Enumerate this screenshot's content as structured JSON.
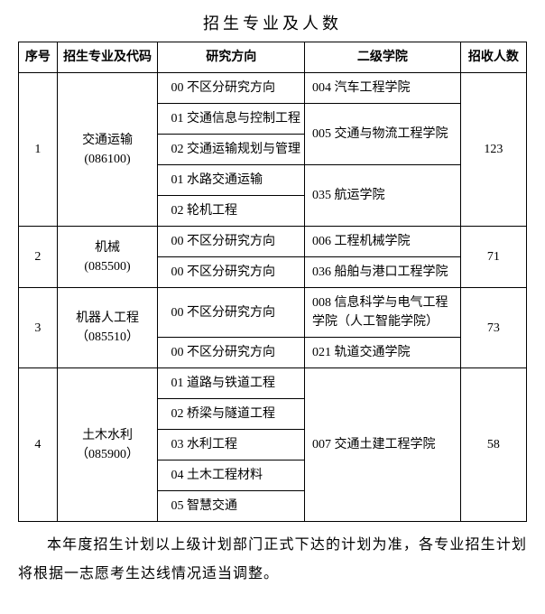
{
  "title": "招生专业及人数",
  "headers": {
    "seq": "序号",
    "major": "招生专业及代码",
    "direction": "研究方向",
    "college": "二级学院",
    "quota": "招收人数"
  },
  "rows": [
    {
      "seq": "1",
      "major_line1": "交通运输",
      "major_line2": "(086100)",
      "quota": "123",
      "dir1": "00 不区分研究方向",
      "dir2": "01 交通信息与控制工程",
      "dir3": "02 交通运输规划与管理",
      "dir4": "01 水路交通运输",
      "dir5": "02 轮机工程",
      "coll1": "004 汽车工程学院",
      "coll2": "005 交通与物流工程学院",
      "coll3": "035 航运学院"
    },
    {
      "seq": "2",
      "major_line1": "机械",
      "major_line2": "(085500)",
      "quota": "71",
      "dir1": "00 不区分研究方向",
      "dir2": "00 不区分研究方向",
      "coll1": "006 工程机械学院",
      "coll2": "036 船舶与港口工程学院"
    },
    {
      "seq": "3",
      "major_line1": "机器人工程",
      "major_line2": "（085510）",
      "quota": "73",
      "dir1": "00 不区分研究方向",
      "dir2": "00 不区分研究方向",
      "coll1": "008 信息科学与电气工程学院（人工智能学院）",
      "coll2": "021 轨道交通学院"
    },
    {
      "seq": "4",
      "major_line1": "土木水利",
      "major_line2": "（085900）",
      "quota": "58",
      "dir1": "01 道路与铁道工程",
      "dir2": "02 桥梁与隧道工程",
      "dir3": "03 水利工程",
      "dir4": "04 土木工程材料",
      "dir5": "05 智慧交通",
      "coll1": "007 交通土建工程学院"
    }
  ],
  "footnote": "本年度招生计划以上级计划部门正式下达的计划为准，各专业招生计划将根据一志愿考生达线情况适当调整。"
}
